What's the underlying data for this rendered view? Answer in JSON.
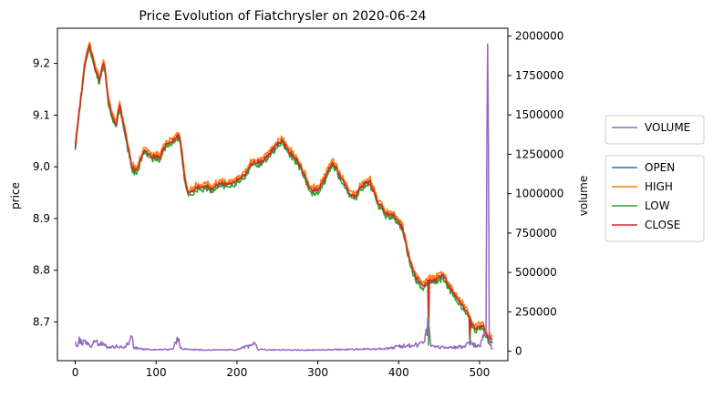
{
  "chart_data": {
    "type": "line",
    "title": "Price Evolution of Fiatchrysler on 2020-06-24",
    "xlabel": "",
    "ylabel": "price",
    "y2label": "volume",
    "xlim": [
      -22,
      535
    ],
    "ylim": [
      8.625,
      9.268
    ],
    "y2lim": [
      -60000,
      2050000
    ],
    "x_ticks": [
      0,
      100,
      200,
      300,
      400,
      500
    ],
    "y_ticks": [
      8.7,
      8.8,
      8.9,
      9.0,
      9.1,
      9.2
    ],
    "y_tick_labels": [
      "8.7",
      "8.8",
      "8.9",
      "9.0",
      "9.1",
      "9.2"
    ],
    "y2_ticks": [
      0,
      250000,
      500000,
      750000,
      1000000,
      1250000,
      1500000,
      1750000,
      2000000
    ],
    "colors": {
      "OPEN": "#1f77b4",
      "HIGH": "#ff7f0e",
      "LOW": "#2ca02c",
      "CLOSE": "#d62728",
      "VOLUME": "#9467bd"
    },
    "legend_volume": {
      "placement": "right, upper",
      "entries": [
        "VOLUME"
      ]
    },
    "legend_price": {
      "placement": "right, middle",
      "entries": [
        "OPEN",
        "HIGH",
        "LOW",
        "CLOSE"
      ]
    },
    "close_anchors": [
      [
        0,
        9.04
      ],
      [
        3,
        9.08
      ],
      [
        6,
        9.12
      ],
      [
        9,
        9.16
      ],
      [
        12,
        9.2
      ],
      [
        15,
        9.22
      ],
      [
        18,
        9.235
      ],
      [
        22,
        9.21
      ],
      [
        26,
        9.18
      ],
      [
        30,
        9.17
      ],
      [
        33,
        9.19
      ],
      [
        36,
        9.2
      ],
      [
        40,
        9.14
      ],
      [
        45,
        9.1
      ],
      [
        50,
        9.08
      ],
      [
        55,
        9.12
      ],
      [
        60,
        9.08
      ],
      [
        65,
        9.04
      ],
      [
        70,
        9.0
      ],
      [
        75,
        8.99
      ],
      [
        80,
        9.01
      ],
      [
        85,
        9.03
      ],
      [
        95,
        9.02
      ],
      [
        105,
        9.02
      ],
      [
        110,
        9.04
      ],
      [
        120,
        9.05
      ],
      [
        128,
        9.06
      ],
      [
        132,
        9.03
      ],
      [
        135,
        8.98
      ],
      [
        140,
        8.95
      ],
      [
        150,
        8.96
      ],
      [
        160,
        8.96
      ],
      [
        170,
        8.96
      ],
      [
        180,
        8.97
      ],
      [
        190,
        8.965
      ],
      [
        200,
        8.975
      ],
      [
        210,
        8.985
      ],
      [
        220,
        9.01
      ],
      [
        230,
        9.01
      ],
      [
        240,
        9.025
      ],
      [
        250,
        9.045
      ],
      [
        255,
        9.05
      ],
      [
        265,
        9.03
      ],
      [
        275,
        9.01
      ],
      [
        285,
        8.98
      ],
      [
        290,
        8.955
      ],
      [
        300,
        8.955
      ],
      [
        310,
        8.98
      ],
      [
        318,
        9.01
      ],
      [
        325,
        8.99
      ],
      [
        335,
        8.96
      ],
      [
        345,
        8.94
      ],
      [
        355,
        8.965
      ],
      [
        365,
        8.97
      ],
      [
        375,
        8.93
      ],
      [
        385,
        8.91
      ],
      [
        395,
        8.905
      ],
      [
        405,
        8.88
      ],
      [
        412,
        8.83
      ],
      [
        420,
        8.79
      ],
      [
        430,
        8.77
      ],
      [
        437,
        8.78
      ],
      [
        445,
        8.78
      ],
      [
        455,
        8.79
      ],
      [
        465,
        8.76
      ],
      [
        475,
        8.74
      ],
      [
        485,
        8.72
      ],
      [
        490,
        8.7
      ],
      [
        495,
        8.685
      ],
      [
        500,
        8.69
      ],
      [
        505,
        8.69
      ],
      [
        510,
        8.67
      ],
      [
        516,
        8.665
      ]
    ],
    "volume_anchors": [
      [
        0,
        60000
      ],
      [
        3,
        30000
      ],
      [
        5,
        90000
      ],
      [
        8,
        45000
      ],
      [
        12,
        70000
      ],
      [
        18,
        30000
      ],
      [
        25,
        60000
      ],
      [
        30,
        35000
      ],
      [
        35,
        50000
      ],
      [
        40,
        25000
      ],
      [
        50,
        30000
      ],
      [
        60,
        20000
      ],
      [
        70,
        95000
      ],
      [
        72,
        25000
      ],
      [
        80,
        15000
      ],
      [
        100,
        10000
      ],
      [
        120,
        12000
      ],
      [
        128,
        80000
      ],
      [
        130,
        20000
      ],
      [
        140,
        12000
      ],
      [
        160,
        8000
      ],
      [
        200,
        8000
      ],
      [
        222,
        50000
      ],
      [
        226,
        10000
      ],
      [
        260,
        8000
      ],
      [
        300,
        8000
      ],
      [
        340,
        12000
      ],
      [
        380,
        15000
      ],
      [
        400,
        30000
      ],
      [
        420,
        40000
      ],
      [
        430,
        50000
      ],
      [
        437,
        170000
      ],
      [
        440,
        30000
      ],
      [
        460,
        20000
      ],
      [
        480,
        30000
      ],
      [
        490,
        50000
      ],
      [
        500,
        30000
      ],
      [
        505,
        90000
      ],
      [
        508,
        140000
      ],
      [
        510,
        1950000
      ],
      [
        512,
        50000
      ],
      [
        516,
        10000
      ]
    ]
  }
}
